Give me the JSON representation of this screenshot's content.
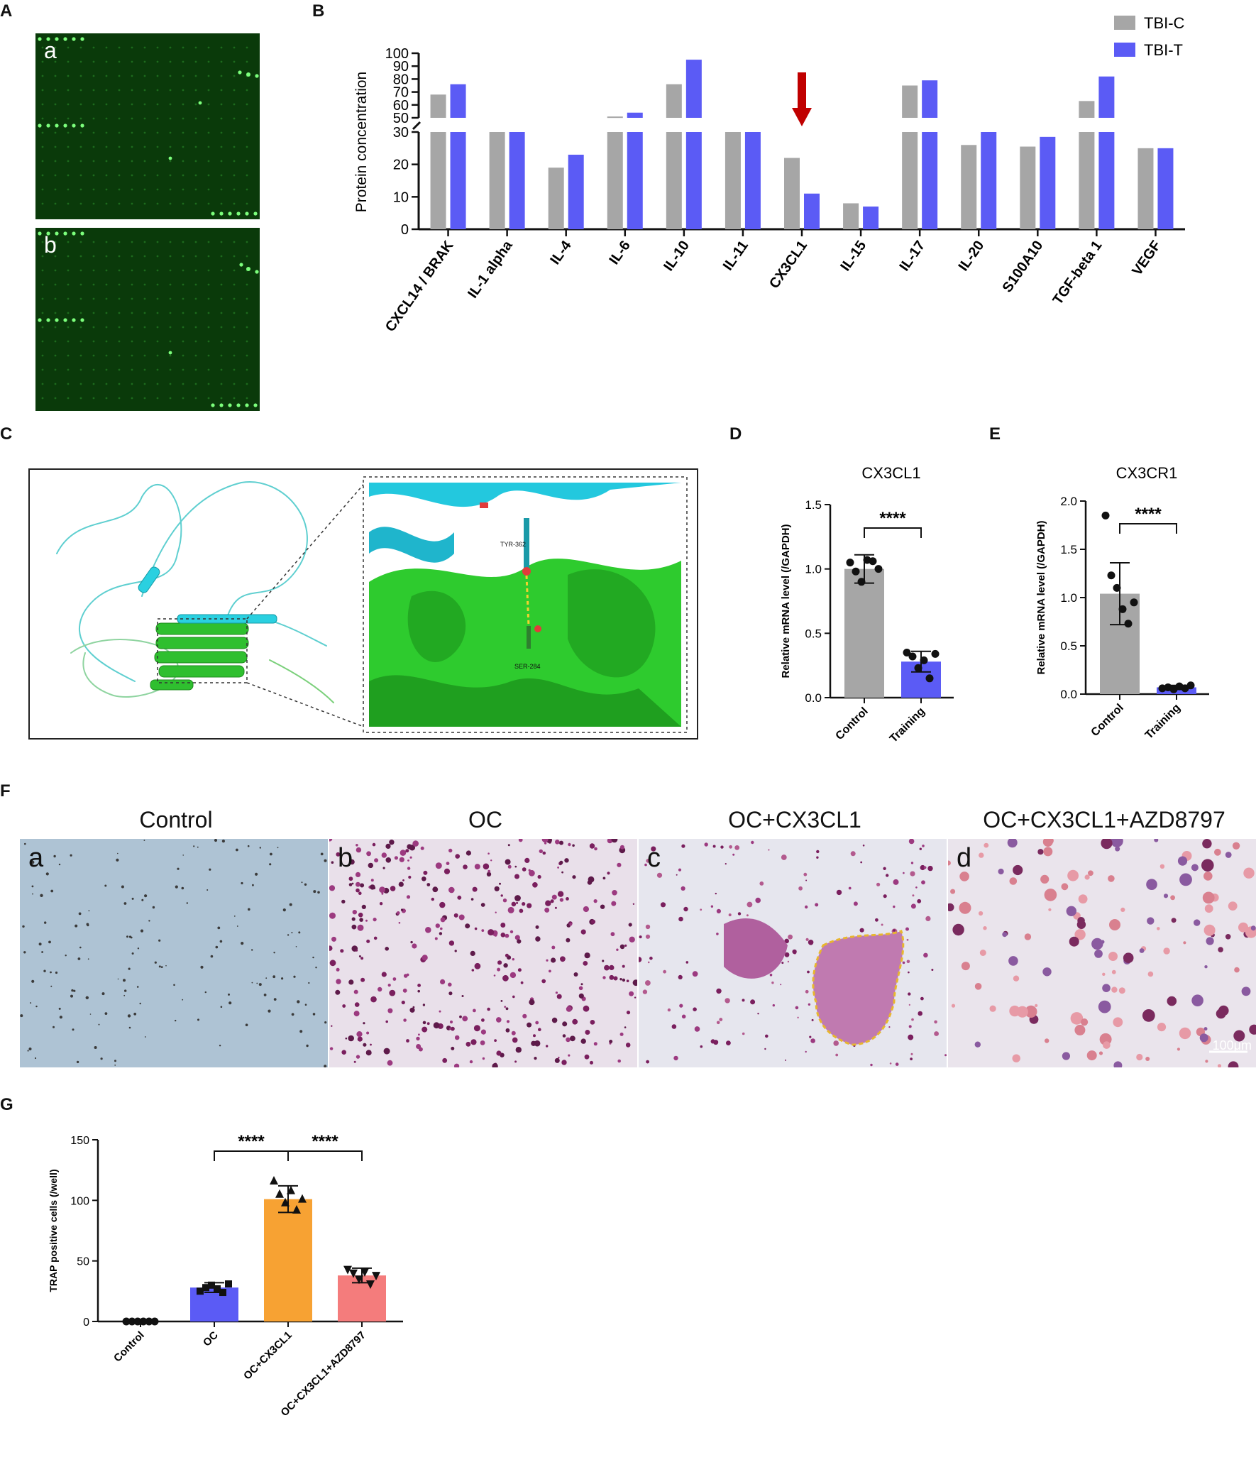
{
  "panel_letters": [
    "A",
    "B",
    "C",
    "D",
    "E",
    "F",
    "G"
  ],
  "panel_a": {
    "sublabels": [
      "a",
      "b"
    ]
  },
  "chart_data": [
    {
      "panel": "B",
      "type": "bar",
      "ylabel": "Protein concentration",
      "legend": [
        "TBI-C",
        "TBI-T"
      ],
      "legend_position": "top-right",
      "colors": [
        "#a6a6a6",
        "#5b5bf5"
      ],
      "categories": [
        "CXCL14 / BRAK",
        "IL-1 alpha",
        "IL-4",
        "IL-6",
        "IL-10",
        "IL-11",
        "CX3CL1",
        "IL-15",
        "IL-17",
        "IL-20",
        "S100A10",
        "TGF-beta 1",
        "VEGF"
      ],
      "series": [
        {
          "name": "TBI-C",
          "values": [
            68,
            30,
            19,
            51,
            76,
            30,
            22,
            8,
            75,
            26,
            25.5,
            63,
            25
          ]
        },
        {
          "name": "TBI-T",
          "values": [
            76,
            30,
            23,
            54,
            95,
            30,
            11,
            7,
            79,
            30,
            28.5,
            82,
            25
          ]
        }
      ],
      "axis_break": [
        30,
        50
      ],
      "lower_ticks": [
        "0",
        "10",
        "20",
        "30"
      ],
      "upper_ticks": [
        "50",
        "60",
        "70",
        "80",
        "90",
        "100"
      ],
      "highlight_category": "CX3CL1",
      "highlight_color": "#c00000"
    },
    {
      "panel": "D",
      "type": "bar",
      "title": "CX3CL1",
      "ylabel": "Relative mRNA level (/GAPDH)",
      "categories": [
        "Control",
        "Training"
      ],
      "values": [
        1.0,
        0.28
      ],
      "errors": [
        0.11,
        0.08
      ],
      "points": [
        [
          1.05,
          0.98,
          0.9,
          1.07,
          1.06,
          1.0
        ],
        [
          0.35,
          0.32,
          0.23,
          0.29,
          0.15,
          0.34
        ]
      ],
      "colors": [
        "#a6a6a6",
        "#5b5bf5"
      ],
      "ylim": [
        0,
        1.5
      ],
      "ticks": [
        "0.0",
        "0.5",
        "1.0",
        "1.5"
      ],
      "significance": "****"
    },
    {
      "panel": "E",
      "type": "bar",
      "title": "CX3CR1",
      "ylabel": "Relative mRNA level (/GAPDH)",
      "categories": [
        "Control",
        "Training"
      ],
      "values": [
        1.04,
        0.07
      ],
      "errors": [
        0.32,
        0.02
      ],
      "points": [
        [
          1.85,
          1.23,
          1.1,
          0.88,
          0.73,
          0.95
        ],
        [
          0.06,
          0.07,
          0.05,
          0.08,
          0.06,
          0.09
        ]
      ],
      "colors": [
        "#a6a6a6",
        "#5b5bf5"
      ],
      "ylim": [
        0,
        2.0
      ],
      "ticks": [
        "0.0",
        "0.5",
        "1.0",
        "1.5",
        "2.0"
      ],
      "significance": "****"
    },
    {
      "panel": "G",
      "type": "bar",
      "ylabel": "TRAP positive cells (/well)",
      "categories": [
        "Control",
        "OC",
        "OC+CX3CL1",
        "OC+CX3CL1+AZD8797"
      ],
      "values": [
        0,
        28,
        101,
        38
      ],
      "errors": [
        0,
        4,
        11,
        6
      ],
      "points": [
        [
          0,
          0,
          0,
          0,
          0,
          0
        ],
        [
          25,
          28,
          30,
          27,
          24,
          31
        ],
        [
          116,
          105,
          98,
          108,
          92,
          101
        ],
        [
          43,
          40,
          35,
          41,
          31,
          38
        ]
      ],
      "colors": [
        "#ffffff",
        "#5b5bf5",
        "#f7a233",
        "#f47c7c"
      ],
      "ylim": [
        0,
        150
      ],
      "ticks": [
        "0",
        "50",
        "100",
        "150"
      ],
      "significance": [
        "****",
        "****"
      ]
    }
  ],
  "panel_c": {
    "residue_labels": [
      "TYR-362",
      "SER-284"
    ]
  },
  "panel_f": {
    "titles": [
      "Control",
      "OC",
      "OC+CX3CL1",
      "OC+CX3CL1+AZD8797"
    ],
    "sublabels": [
      "a",
      "b",
      "c",
      "d"
    ],
    "scale_bar": "100μm"
  }
}
